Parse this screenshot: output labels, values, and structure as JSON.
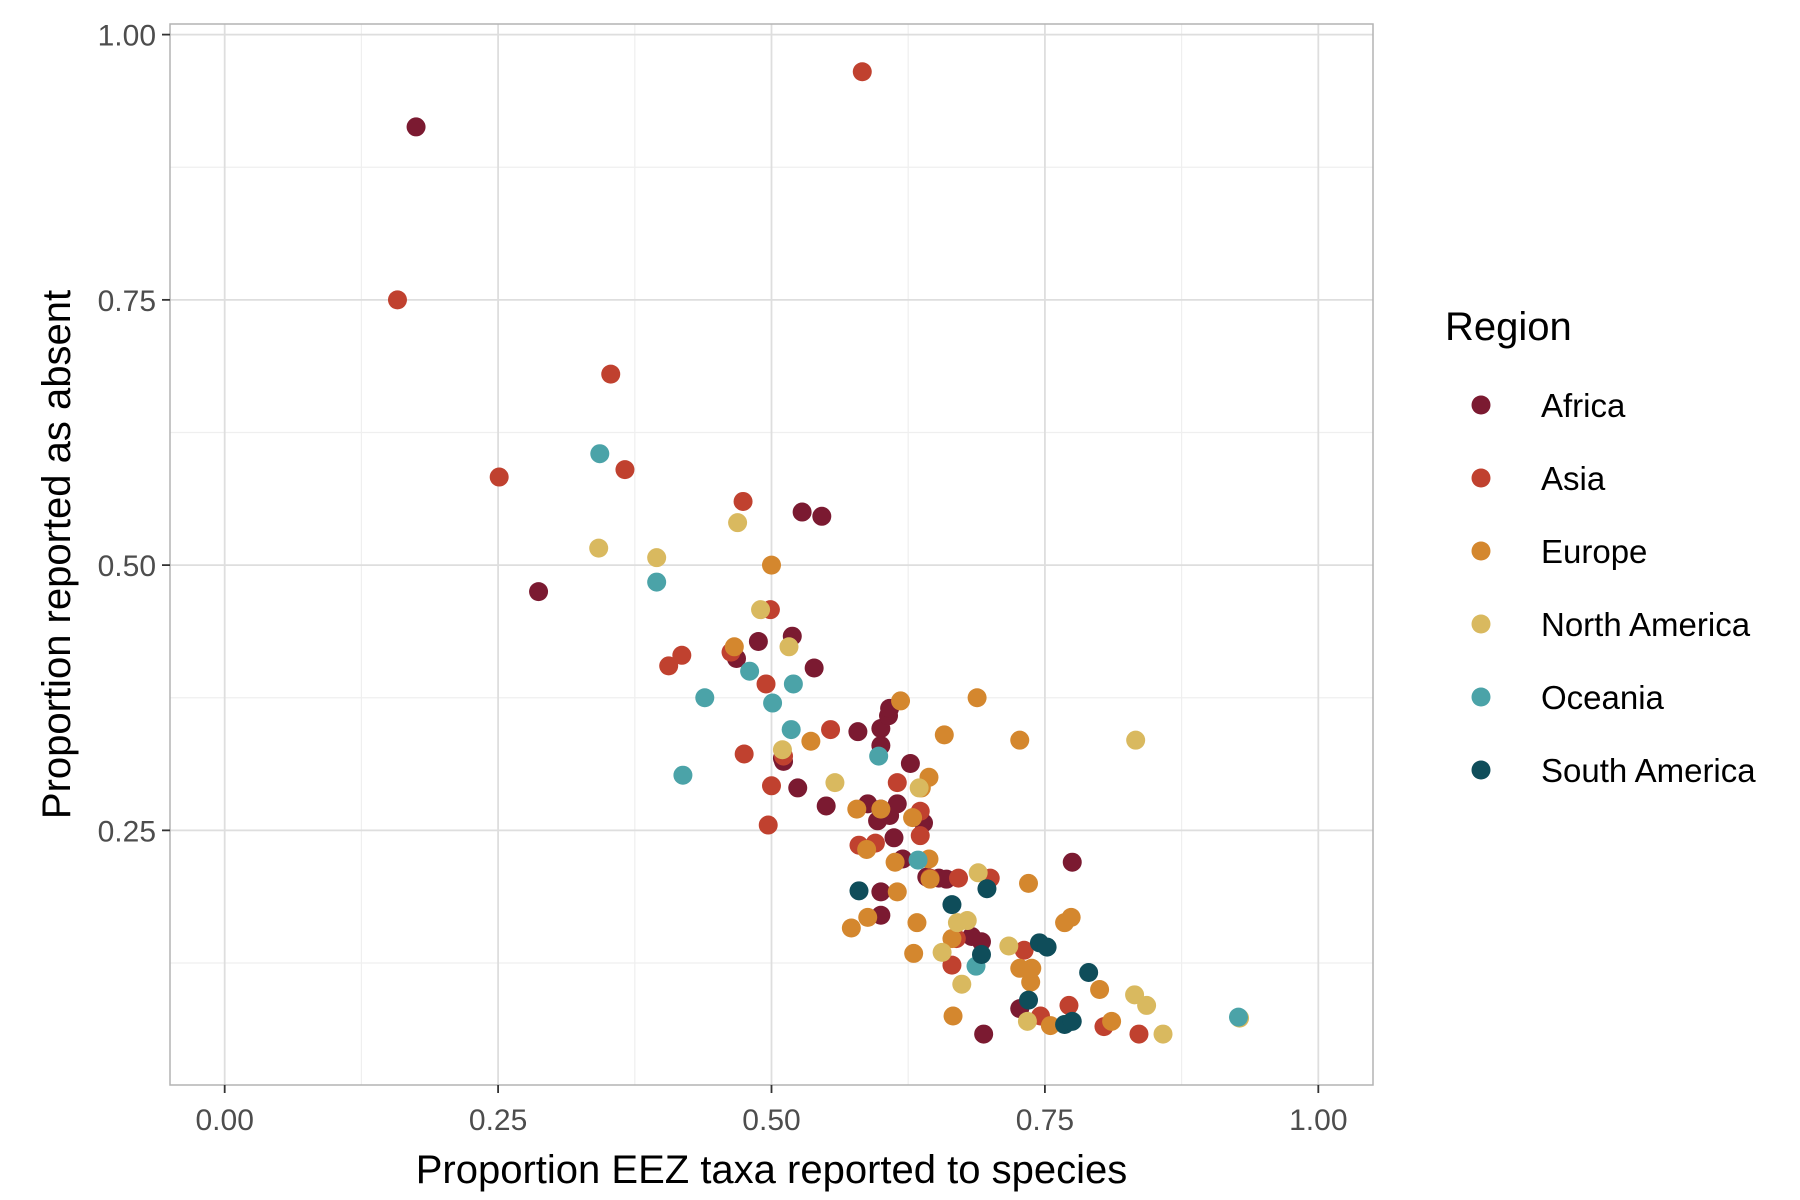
{
  "chart_data": {
    "type": "scatter",
    "xlabel": "Proportion EEZ taxa reported to species",
    "ylabel": "Proportion reported as absent",
    "xlim": [
      -0.05,
      1.05
    ],
    "ylim": [
      0.01,
      1.01
    ],
    "xticks": [
      0.0,
      0.25,
      0.5,
      0.75,
      1.0
    ],
    "xtick_labels": [
      "0.00",
      "0.25",
      "0.50",
      "0.75",
      "1.00"
    ],
    "yticks": [
      0.25,
      0.5,
      0.75,
      1.0
    ],
    "ytick_labels": [
      "0.25",
      "0.50",
      "0.75",
      "1.00"
    ],
    "grid": true,
    "legend": {
      "title": "Region",
      "position": "right"
    },
    "series": [
      {
        "name": "Africa",
        "color": "#7b1a31",
        "points": [
          [
            0.175,
            0.913
          ],
          [
            0.287,
            0.475
          ],
          [
            0.468,
            0.412
          ],
          [
            0.488,
            0.428
          ],
          [
            0.519,
            0.433
          ],
          [
            0.528,
            0.55
          ],
          [
            0.546,
            0.546
          ],
          [
            0.539,
            0.403
          ],
          [
            0.51,
            0.318
          ],
          [
            0.511,
            0.315
          ],
          [
            0.524,
            0.29
          ],
          [
            0.55,
            0.273
          ],
          [
            0.579,
            0.343
          ],
          [
            0.6,
            0.346
          ],
          [
            0.6,
            0.33
          ],
          [
            0.607,
            0.358
          ],
          [
            0.608,
            0.365
          ],
          [
            0.627,
            0.313
          ],
          [
            0.588,
            0.275
          ],
          [
            0.597,
            0.259
          ],
          [
            0.6,
            0.27
          ],
          [
            0.608,
            0.264
          ],
          [
            0.615,
            0.275
          ],
          [
            0.612,
            0.243
          ],
          [
            0.62,
            0.223
          ],
          [
            0.639,
            0.257
          ],
          [
            0.642,
            0.206
          ],
          [
            0.653,
            0.205
          ],
          [
            0.66,
            0.204
          ],
          [
            0.6,
            0.192
          ],
          [
            0.6,
            0.17
          ],
          [
            0.683,
            0.15
          ],
          [
            0.692,
            0.145
          ],
          [
            0.694,
            0.058
          ],
          [
            0.727,
            0.082
          ],
          [
            0.775,
            0.22
          ]
        ]
      },
      {
        "name": "Asia",
        "color": "#c0412f",
        "points": [
          [
            0.158,
            0.75
          ],
          [
            0.251,
            0.583
          ],
          [
            0.353,
            0.68
          ],
          [
            0.366,
            0.59
          ],
          [
            0.406,
            0.405
          ],
          [
            0.418,
            0.415
          ],
          [
            0.463,
            0.418
          ],
          [
            0.474,
            0.56
          ],
          [
            0.475,
            0.322
          ],
          [
            0.495,
            0.388
          ],
          [
            0.499,
            0.458
          ],
          [
            0.5,
            0.292
          ],
          [
            0.497,
            0.255
          ],
          [
            0.511,
            0.32
          ],
          [
            0.554,
            0.345
          ],
          [
            0.58,
            0.236
          ],
          [
            0.595,
            0.238
          ],
          [
            0.615,
            0.295
          ],
          [
            0.636,
            0.268
          ],
          [
            0.636,
            0.245
          ],
          [
            0.645,
            0.205
          ],
          [
            0.671,
            0.205
          ],
          [
            0.7,
            0.205
          ],
          [
            0.665,
            0.123
          ],
          [
            0.669,
            0.148
          ],
          [
            0.731,
            0.137
          ],
          [
            0.746,
            0.075
          ],
          [
            0.772,
            0.085
          ],
          [
            0.804,
            0.065
          ],
          [
            0.836,
            0.058
          ],
          [
            0.583,
            0.965
          ]
        ]
      },
      {
        "name": "Europe",
        "color": "#d4872e",
        "points": [
          [
            0.466,
            0.423
          ],
          [
            0.5,
            0.5
          ],
          [
            0.536,
            0.334
          ],
          [
            0.578,
            0.27
          ],
          [
            0.587,
            0.232
          ],
          [
            0.6,
            0.27
          ],
          [
            0.613,
            0.22
          ],
          [
            0.618,
            0.372
          ],
          [
            0.629,
            0.262
          ],
          [
            0.633,
            0.163
          ],
          [
            0.63,
            0.134
          ],
          [
            0.637,
            0.29
          ],
          [
            0.644,
            0.3
          ],
          [
            0.644,
            0.223
          ],
          [
            0.645,
            0.204
          ],
          [
            0.658,
            0.34
          ],
          [
            0.665,
            0.148
          ],
          [
            0.666,
            0.075
          ],
          [
            0.688,
            0.375
          ],
          [
            0.727,
            0.335
          ],
          [
            0.727,
            0.12
          ],
          [
            0.735,
            0.2
          ],
          [
            0.737,
            0.107
          ],
          [
            0.738,
            0.12
          ],
          [
            0.768,
            0.163
          ],
          [
            0.774,
            0.168
          ],
          [
            0.8,
            0.1
          ],
          [
            0.811,
            0.07
          ],
          [
            0.755,
            0.066
          ],
          [
            0.573,
            0.158
          ],
          [
            0.588,
            0.168
          ],
          [
            0.615,
            0.192
          ]
        ]
      },
      {
        "name": "North America",
        "color": "#d9b95f",
        "points": [
          [
            0.342,
            0.516
          ],
          [
            0.395,
            0.507
          ],
          [
            0.469,
            0.54
          ],
          [
            0.49,
            0.458
          ],
          [
            0.51,
            0.326
          ],
          [
            0.516,
            0.423
          ],
          [
            0.558,
            0.295
          ],
          [
            0.635,
            0.29
          ],
          [
            0.656,
            0.135
          ],
          [
            0.67,
            0.163
          ],
          [
            0.674,
            0.105
          ],
          [
            0.679,
            0.165
          ],
          [
            0.689,
            0.21
          ],
          [
            0.717,
            0.141
          ],
          [
            0.734,
            0.07
          ],
          [
            0.833,
            0.335
          ],
          [
            0.832,
            0.095
          ],
          [
            0.843,
            0.085
          ],
          [
            0.858,
            0.058
          ],
          [
            0.928,
            0.073
          ]
        ]
      },
      {
        "name": "Oceania",
        "color": "#4ba3a8",
        "points": [
          [
            0.343,
            0.605
          ],
          [
            0.395,
            0.484
          ],
          [
            0.419,
            0.302
          ],
          [
            0.439,
            0.375
          ],
          [
            0.48,
            0.4
          ],
          [
            0.501,
            0.37
          ],
          [
            0.518,
            0.345
          ],
          [
            0.52,
            0.388
          ],
          [
            0.598,
            0.32
          ],
          [
            0.634,
            0.222
          ],
          [
            0.687,
            0.122
          ],
          [
            0.927,
            0.074
          ]
        ]
      },
      {
        "name": "South America",
        "color": "#0f4d5a",
        "points": [
          [
            0.58,
            0.193
          ],
          [
            0.665,
            0.18
          ],
          [
            0.692,
            0.133
          ],
          [
            0.697,
            0.195
          ],
          [
            0.735,
            0.09
          ],
          [
            0.745,
            0.144
          ],
          [
            0.752,
            0.14
          ],
          [
            0.768,
            0.067
          ],
          [
            0.775,
            0.07
          ],
          [
            0.79,
            0.116
          ]
        ]
      }
    ]
  }
}
